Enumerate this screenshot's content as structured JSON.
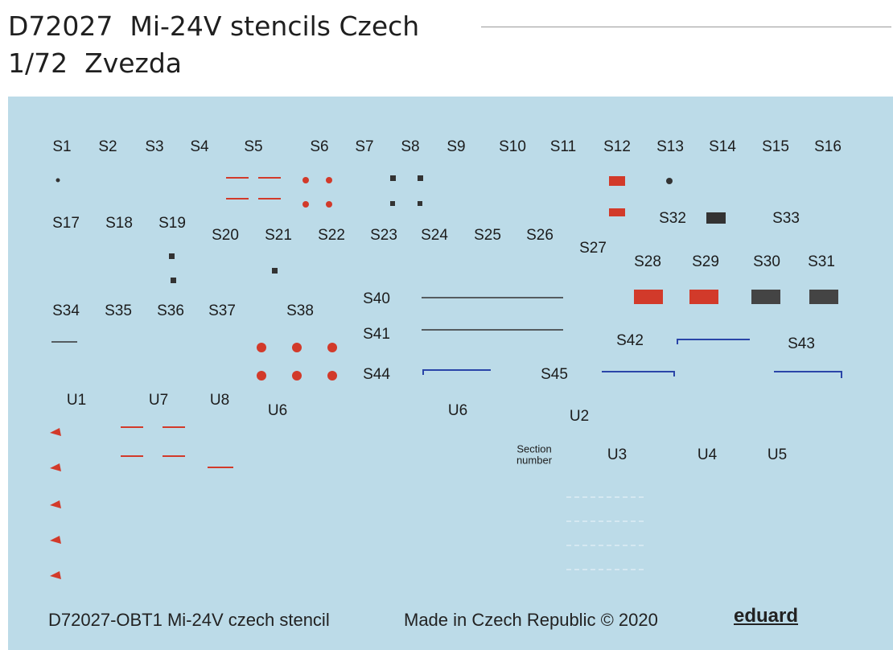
{
  "header": {
    "title": "D72027  Mi-24V stencils Czech",
    "subtitle": "1/72  Zvezda"
  },
  "labels": [
    "S1",
    "S2",
    "S3",
    "S4",
    "S5",
    "S6",
    "S7",
    "S8",
    "S9",
    "S10",
    "S11",
    "S12",
    "S13",
    "S14",
    "S15",
    "S16",
    "S17",
    "S18",
    "S19",
    "S20",
    "S21",
    "S22",
    "S23",
    "S24",
    "S25",
    "S26",
    "S27",
    "S28",
    "S29",
    "S30",
    "S31",
    "S32",
    "S33",
    "S34",
    "S35",
    "S36",
    "S37",
    "S38",
    "S40",
    "S41",
    "S42",
    "S43",
    "S44",
    "S45",
    "U1",
    "U7",
    "U8",
    "U6",
    "U6",
    "U2",
    "U3",
    "U4",
    "U5",
    "Section number"
  ],
  "footer": {
    "code": "D72027-OBT1 Mi-24V czech stencil",
    "origin": "Made in Czech Republic © 2020",
    "brand": "eduard"
  }
}
